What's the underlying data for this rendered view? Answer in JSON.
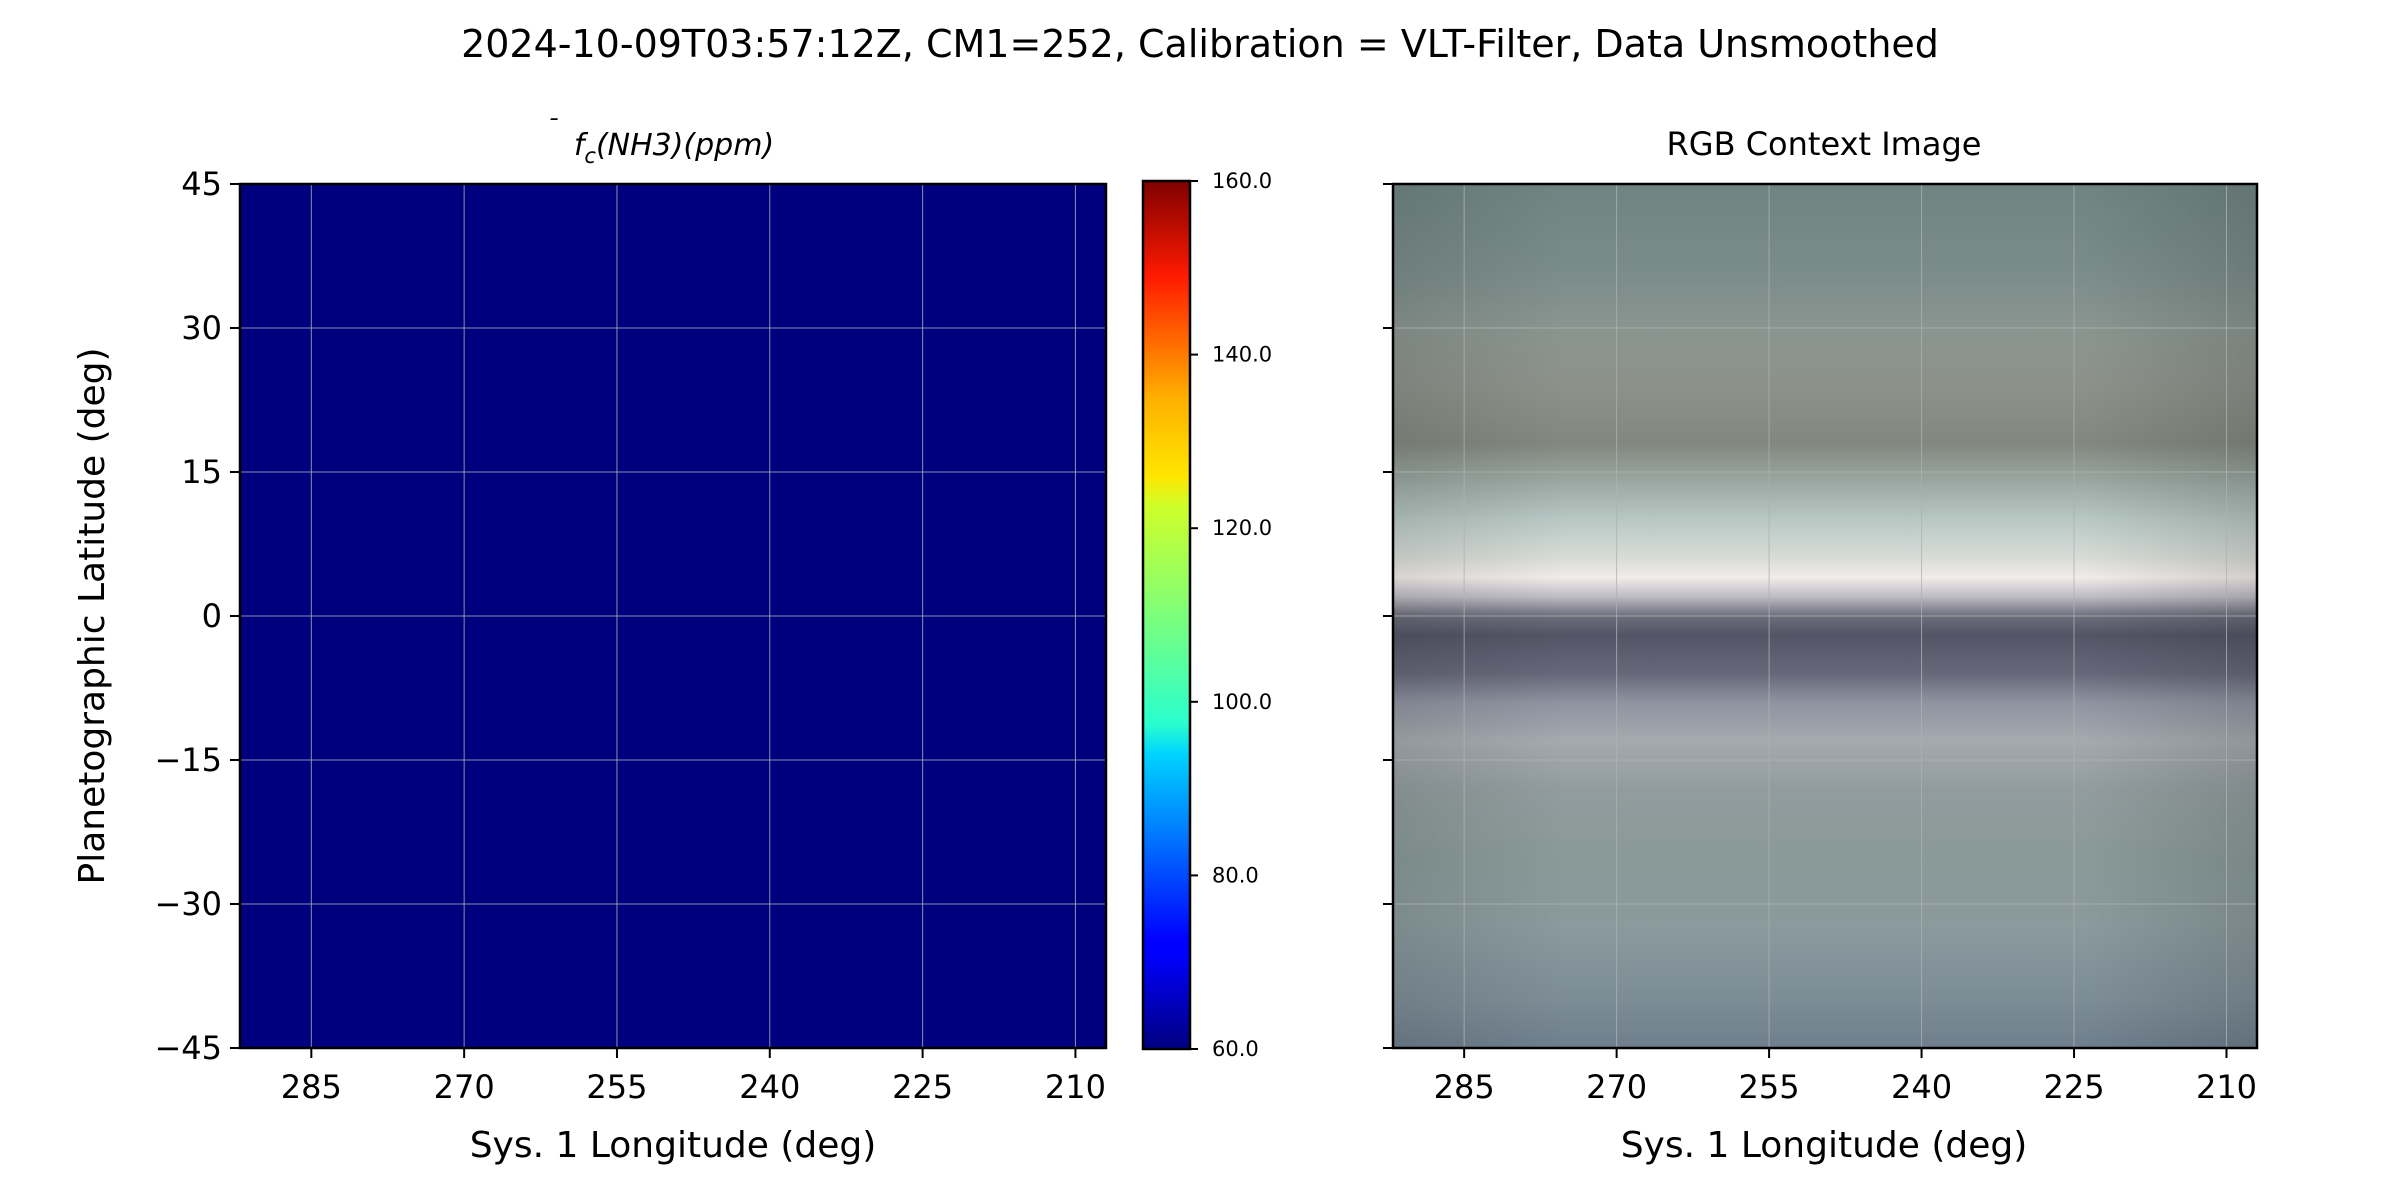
{
  "suptitle": "2024-10-09T03:57:12Z, CM1=252, Calibration = VLT-Filter, Data Unsmoothed",
  "chart_data": [
    {
      "type": "heatmap",
      "title_parts": {
        "base": "f",
        "accent": "¯",
        "sub": "c",
        "rest": "(NH3)(ppm)"
      },
      "xlabel": "Sys. 1 Longitude (deg)",
      "ylabel": "Planetographic Latitude (deg)",
      "xlim": [
        292,
        207
      ],
      "ylim": [
        -45,
        45
      ],
      "xticks": [
        285,
        270,
        255,
        240,
        225,
        210
      ],
      "yticks": [
        -45,
        -30,
        -15,
        0,
        15,
        30,
        45
      ],
      "ytick_labels": [
        "−45",
        "−30",
        "−15",
        "0",
        "15",
        "30",
        "45"
      ],
      "grid": true,
      "colormap": "jet",
      "clim": [
        60.0,
        160.0
      ],
      "field_value": 60.0,
      "fill_color": "#00007f",
      "colorbar": {
        "ticks": [
          60.0,
          80.0,
          100.0,
          120.0,
          140.0,
          160.0
        ],
        "tick_labels": [
          "60.0",
          "80.0",
          "100.0",
          "120.0",
          "140.0",
          "160.0"
        ]
      }
    },
    {
      "type": "heatmap",
      "title": "RGB Context Image",
      "xlabel": "Sys. 1 Longitude (deg)",
      "xlim": [
        292,
        207
      ],
      "ylim": [
        -45,
        45
      ],
      "xticks": [
        285,
        270,
        255,
        240,
        225,
        210
      ],
      "yticks": [
        -45,
        -30,
        -15,
        0,
        15,
        30,
        45
      ],
      "grid": true,
      "bands": [
        {
          "lat": 45,
          "color": "#6f8482"
        },
        {
          "lat": 36,
          "color": "#7a8c89"
        },
        {
          "lat": 30,
          "color": "#8a9590"
        },
        {
          "lat": 24,
          "color": "#8d918a"
        },
        {
          "lat": 18,
          "color": "#82877f"
        },
        {
          "lat": 14,
          "color": "#9aa8a2"
        },
        {
          "lat": 10,
          "color": "#b8c8c4"
        },
        {
          "lat": 6,
          "color": "#d8dcd8"
        },
        {
          "lat": 4,
          "color": "#f1ebe9"
        },
        {
          "lat": 2,
          "color": "#bdbcc4"
        },
        {
          "lat": 0,
          "color": "#6d6d7c"
        },
        {
          "lat": -2,
          "color": "#545466"
        },
        {
          "lat": -6,
          "color": "#66687a"
        },
        {
          "lat": -9,
          "color": "#8f93a0"
        },
        {
          "lat": -13,
          "color": "#a4aaaf"
        },
        {
          "lat": -18,
          "color": "#929c9e"
        },
        {
          "lat": -25,
          "color": "#899a98"
        },
        {
          "lat": -32,
          "color": "#8a9a9d"
        },
        {
          "lat": -40,
          "color": "#7d8d96"
        },
        {
          "lat": -45,
          "color": "#6e7e8c"
        }
      ]
    }
  ]
}
